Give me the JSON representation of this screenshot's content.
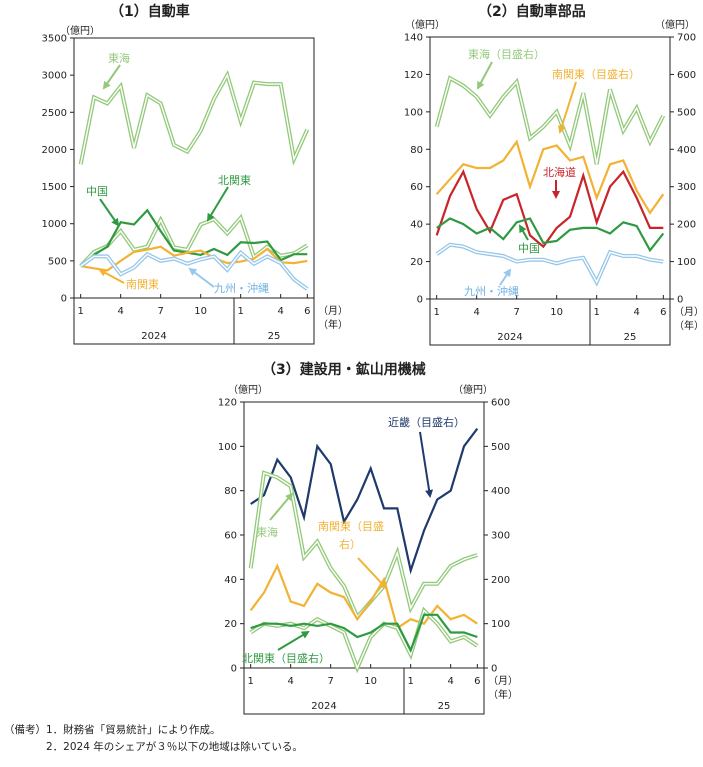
{
  "chart_data": [
    {
      "id": "c1",
      "type": "line",
      "title": "（1）自動車",
      "left_unit": "（億円）",
      "x_ticks": [
        "1",
        "4",
        "7",
        "10",
        "1",
        "4",
        "6"
      ],
      "x_tick_index": [
        0,
        3,
        6,
        9,
        12,
        15,
        17
      ],
      "x_unit_month": "（月）",
      "x_unit_year": "（年）",
      "years": [
        "2024",
        "25"
      ],
      "ylim": [
        0,
        3500
      ],
      "y_ticks": [
        "0",
        "500",
        "1000",
        "1500",
        "2000",
        "2500",
        "3000",
        "3500"
      ],
      "series": [
        {
          "name": "東海",
          "label": "東海",
          "color": "#93c97a",
          "double": true,
          "axis": "left",
          "values": [
            1800,
            2700,
            2620,
            2850,
            2020,
            2730,
            2620,
            2060,
            1970,
            2250,
            2680,
            3000,
            2380,
            2900,
            2880,
            2880,
            1870,
            2270
          ]
        },
        {
          "name": "北関東",
          "label": "北関東",
          "color": "#93c97a",
          "double": true,
          "axis": "left",
          "values": [
            430,
            620,
            700,
            900,
            650,
            690,
            1050,
            680,
            650,
            990,
            1060,
            870,
            1080,
            550,
            690,
            570,
            600,
            710
          ]
        },
        {
          "name": "中国",
          "label": "中国",
          "color": "#2f9a42",
          "double": false,
          "axis": "left",
          "values": [
            430,
            580,
            690,
            1020,
            990,
            1180,
            900,
            640,
            610,
            580,
            660,
            580,
            750,
            740,
            760,
            510,
            590,
            590
          ]
        },
        {
          "name": "南関東",
          "label": "南関東",
          "color": "#f2b233",
          "double": false,
          "axis": "left",
          "values": [
            430,
            400,
            370,
            500,
            620,
            650,
            690,
            570,
            610,
            640,
            540,
            470,
            490,
            530,
            660,
            480,
            470,
            500
          ]
        },
        {
          "name": "九州・沖縄",
          "label": "九州・沖縄",
          "color": "#97c7ea",
          "double": true,
          "axis": "left",
          "values": [
            430,
            560,
            560,
            320,
            410,
            590,
            500,
            530,
            460,
            520,
            560,
            380,
            610,
            460,
            560,
            470,
            250,
            120
          ]
        }
      ]
    },
    {
      "id": "c2",
      "type": "line",
      "title": "（2）自動車部品",
      "left_unit": "（億円）",
      "right_unit": "（億円）",
      "x_ticks": [
        "1",
        "4",
        "7",
        "10",
        "1",
        "4",
        "6"
      ],
      "x_tick_index": [
        0,
        3,
        6,
        9,
        12,
        15,
        17
      ],
      "x_unit_month": "（月）",
      "x_unit_year": "（年）",
      "years": [
        "2024",
        "25"
      ],
      "ylim": [
        0,
        140
      ],
      "y_ticks": [
        "0",
        "20",
        "40",
        "60",
        "80",
        "100",
        "120",
        "140"
      ],
      "y2lim": [
        0,
        700
      ],
      "y2_ticks": [
        "0",
        "100",
        "200",
        "300",
        "400",
        "500",
        "600",
        "700"
      ],
      "series": [
        {
          "name": "東海（目盛右）",
          "label": "東海（目盛右）",
          "color": "#93c97a",
          "double": true,
          "axis": "right",
          "values": [
            460,
            590,
            570,
            540,
            490,
            540,
            580,
            430,
            460,
            500,
            410,
            550,
            360,
            560,
            450,
            510,
            420,
            490
          ]
        },
        {
          "name": "南関東（目盛右）",
          "label": "南関東（目盛右）",
          "color": "#f2b233",
          "double": false,
          "axis": "right",
          "values": [
            280,
            320,
            360,
            350,
            350,
            370,
            420,
            300,
            400,
            410,
            370,
            380,
            270,
            360,
            370,
            290,
            230,
            280
          ]
        },
        {
          "name": "北海道",
          "label": "北海道",
          "color": "#c8252a",
          "double": false,
          "axis": "left",
          "values": [
            34,
            55,
            68,
            48,
            36,
            53,
            56,
            34,
            28,
            38,
            44,
            66,
            41,
            60,
            68,
            54,
            38,
            38
          ]
        },
        {
          "name": "中国",
          "label": "中国",
          "color": "#2f9a42",
          "double": false,
          "axis": "left",
          "values": [
            38,
            43,
            40,
            35,
            38,
            32,
            41,
            43,
            30,
            31,
            37,
            38,
            38,
            35,
            41,
            39,
            26,
            35
          ]
        },
        {
          "name": "九州・沖縄",
          "label": "九州・沖縄",
          "color": "#97c7ea",
          "double": true,
          "axis": "left",
          "values": [
            24,
            29,
            28,
            25,
            24,
            23,
            20,
            21,
            21,
            19,
            21,
            22,
            9,
            25,
            23,
            23,
            21,
            20
          ]
        }
      ]
    },
    {
      "id": "c3",
      "type": "line",
      "title": "（3）建設用・鉱山用機械",
      "left_unit": "（億円）",
      "right_unit": "（億円）",
      "x_ticks": [
        "1",
        "4",
        "7",
        "10",
        "1",
        "4",
        "6"
      ],
      "x_tick_index": [
        0,
        3,
        6,
        9,
        12,
        15,
        17
      ],
      "x_unit_month": "（月）",
      "x_unit_year": "（年）",
      "years": [
        "2024",
        "25"
      ],
      "ylim": [
        0,
        120
      ],
      "y_ticks": [
        "0",
        "20",
        "40",
        "60",
        "80",
        "100",
        "120"
      ],
      "y2lim": [
        0,
        600
      ],
      "y2_ticks": [
        "0",
        "100",
        "200",
        "300",
        "400",
        "500",
        "600"
      ],
      "series": [
        {
          "name": "近畿（目盛右）",
          "label": "近畿（目盛右）",
          "color": "#1f3a6b",
          "double": false,
          "axis": "right",
          "values": [
            370,
            390,
            470,
            430,
            340,
            500,
            460,
            330,
            380,
            450,
            360,
            360,
            220,
            310,
            380,
            400,
            500,
            540
          ]
        },
        {
          "name": "東海",
          "label": "東海",
          "color": "#93c97a",
          "double": true,
          "axis": "left",
          "values": [
            45,
            88,
            86,
            82,
            50,
            57,
            45,
            37,
            23,
            30,
            37,
            52,
            27,
            38,
            38,
            46,
            49,
            51
          ]
        },
        {
          "name": "南関東（目盛右）",
          "label": "南関東（目盛右）",
          "color": "#f2b233",
          "double": false,
          "axis": "right",
          "values": [
            130,
            170,
            230,
            150,
            140,
            190,
            170,
            160,
            110,
            150,
            200,
            90,
            110,
            100,
            140,
            110,
            120,
            100
          ]
        },
        {
          "name": "北関東（目盛右）",
          "label": "北関東（目盛右）",
          "color": "#93c97a",
          "double": true,
          "axis": "right",
          "values": [
            80,
            100,
            95,
            100,
            90,
            110,
            95,
            80,
            0,
            70,
            100,
            90,
            30,
            130,
            100,
            60,
            70,
            50
          ]
        },
        {
          "name": "（unlabeled green）",
          "label": "",
          "color": "#2f9a42",
          "double": false,
          "axis": "right",
          "values": [
            90,
            100,
            100,
            95,
            100,
            95,
            100,
            90,
            70,
            80,
            100,
            100,
            40,
            120,
            120,
            80,
            80,
            70
          ]
        }
      ]
    }
  ],
  "notes": {
    "head": "（備考）",
    "line1": "1．財務省「貿易統計」により作成。",
    "line2": "2．2024 年のシェアが３％以下の地域は除いている。"
  }
}
